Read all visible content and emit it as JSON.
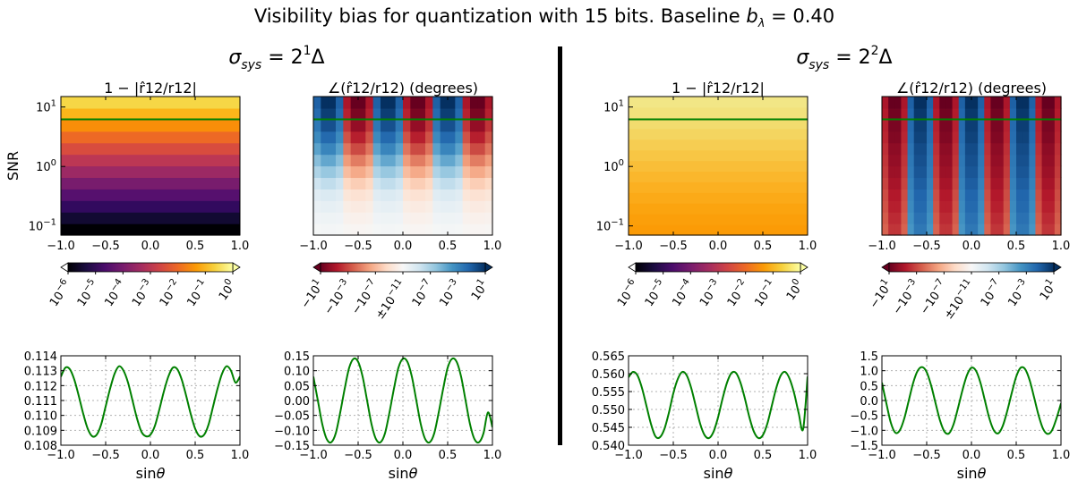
{
  "figure": {
    "suptitle": "Visibility bias for quantization with 15 bits. Baseline b_λ = 0.40",
    "suptitle_main": "Visibility bias for quantization with 15 bits. Baseline ",
    "suptitle_b": "b",
    "suptitle_sub": "λ",
    "suptitle_eq": " = 0.40",
    "groups": [
      {
        "title": "σ_sys = 2^1 Δ",
        "sigma": "σ",
        "sub": "sys",
        "eq": " = 2",
        "exp": "1",
        "delta": "Δ"
      },
      {
        "title": "σ_sys = 2^2 Δ",
        "sigma": "σ",
        "sub": "sys",
        "eq": " = 2",
        "exp": "2",
        "delta": "Δ"
      }
    ],
    "divider_color": "#000000"
  },
  "colors": {
    "line": "#008000",
    "grid": "#b0b0b0",
    "inferno": [
      "#000004",
      "#1b0c41",
      "#4a0c6b",
      "#781c6d",
      "#a52c60",
      "#cf4446",
      "#ed6925",
      "#fb9b06",
      "#f7d13d",
      "#fcffa4"
    ],
    "rdbu": [
      "#67001f",
      "#b2182b",
      "#d6604d",
      "#f4a582",
      "#fddbc7",
      "#f7f7f7",
      "#d1e5f0",
      "#92c5de",
      "#4393c3",
      "#2166ac",
      "#053061"
    ]
  },
  "chart_data": [
    {
      "type": "heatmap",
      "panel": "magnitude-bias-sigma1",
      "title": "1 − |r̂12/r12|",
      "ylabel": "SNR",
      "xlim": [
        -1.0,
        1.0
      ],
      "ylim": [
        0.07,
        15
      ],
      "yscale": "log",
      "x_ticks": [
        "−1.0",
        "−0.5",
        "0.0",
        "0.5",
        "1.0"
      ],
      "y_ticks": [
        "10",
        "10",
        "10"
      ],
      "y_tick_exps": [
        "1",
        "0",
        "−1"
      ],
      "y_tick_values": [
        10,
        1,
        0.1
      ],
      "snr_reference": 6.2,
      "row_colors": [
        "#000004",
        "#120a32",
        "#320a5e",
        "#56106e",
        "#781c6d",
        "#9c2964",
        "#bc3754",
        "#d84c3e",
        "#ed6925",
        "#f98e09",
        "#fbb61a",
        "#f6d746"
      ],
      "colorbar": {
        "cmap": "inferno",
        "labels": [
          "10^-6",
          "10^-5",
          "10^-4",
          "10^-3",
          "10^-2",
          "10^-1",
          "10^0"
        ],
        "bases": [
          "10",
          "10",
          "10",
          "10",
          "10",
          "10",
          "10"
        ],
        "exps": [
          "−6",
          "−5",
          "−4",
          "−3",
          "−2",
          "−1",
          "0"
        ]
      }
    },
    {
      "type": "heatmap",
      "panel": "phase-bias-sigma1",
      "title": "∠(r̂12/r12) (degrees)",
      "xlim": [
        -1.0,
        1.0
      ],
      "ylim": [
        0.07,
        15
      ],
      "yscale": "log",
      "x_ticks": [
        "−1.0",
        "−0.5",
        "0.0",
        "0.5",
        "1.0"
      ],
      "snr_reference": 6.2,
      "stripes_sign": [
        -1,
        1,
        -1,
        1,
        -1,
        1
      ],
      "amplitude_rows": [
        0.02,
        0.05,
        0.09,
        0.15,
        0.25,
        0.38,
        0.52,
        0.66,
        0.78,
        0.88,
        0.95,
        1.0
      ],
      "colorbar": {
        "cmap": "RdBu",
        "labels": [
          "−10^1",
          "−10^-3",
          "−10^-7",
          "±10^-11",
          "10^-7",
          "10^-3",
          "10^1"
        ],
        "bases": [
          "−10",
          "−10",
          "−10",
          "±10",
          "10",
          "10",
          "10"
        ],
        "exps": [
          "1",
          "−3",
          "−7",
          "−11",
          "−7",
          "−3",
          "1"
        ]
      }
    },
    {
      "type": "heatmap",
      "panel": "magnitude-bias-sigma2",
      "title": "1 − |r̂12/r12|",
      "xlim": [
        -1.0,
        1.0
      ],
      "ylim": [
        0.07,
        15
      ],
      "yscale": "log",
      "x_ticks": [
        "−1.0",
        "−0.5",
        "0.0",
        "0.5",
        "1.0"
      ],
      "y_ticks": [
        "10",
        "10",
        "10"
      ],
      "y_tick_exps": [
        "1",
        "0",
        "−1"
      ],
      "y_tick_values": [
        10,
        1,
        0.1
      ],
      "snr_reference": 6.2,
      "row_colors": [
        "#fb9b06",
        "#fb9f0a",
        "#fba40f",
        "#fbaa18",
        "#fbb021",
        "#fab72c",
        "#f9be38",
        "#f8c644",
        "#f6cd52",
        "#f4d560",
        "#f2dc6e",
        "#f2e27c",
        "#f2e686"
      ],
      "colorbar": {
        "cmap": "inferno",
        "labels": [
          "10^-6",
          "10^-5",
          "10^-4",
          "10^-3",
          "10^-2",
          "10^-1",
          "10^0"
        ],
        "bases": [
          "10",
          "10",
          "10",
          "10",
          "10",
          "10",
          "10"
        ],
        "exps": [
          "−6",
          "−5",
          "−4",
          "−3",
          "−2",
          "−1",
          "0"
        ]
      }
    },
    {
      "type": "heatmap",
      "panel": "phase-bias-sigma2",
      "title": "∠(r̂12/r12) (degrees)",
      "xlim": [
        -1.0,
        1.0
      ],
      "ylim": [
        0.07,
        15
      ],
      "yscale": "log",
      "x_ticks": [
        "−1.0",
        "−0.5",
        "0.0",
        "0.5",
        "1.0"
      ],
      "snr_reference": 6.2,
      "stripes_sign": [
        1,
        -1,
        1,
        -1,
        1,
        -1,
        1
      ],
      "amplitude_rows": [
        0.72,
        0.75,
        0.78,
        0.8,
        0.83,
        0.86,
        0.88,
        0.9,
        0.93,
        0.95,
        0.97,
        1.0
      ],
      "colorbar": {
        "cmap": "RdBu",
        "labels": [
          "−10^1",
          "−10^-3",
          "−10^-7",
          "±10^-11",
          "10^-7",
          "10^-3",
          "10^1"
        ],
        "bases": [
          "−10",
          "−10",
          "−10",
          "±10",
          "10",
          "10",
          "10"
        ],
        "exps": [
          "1",
          "−3",
          "−7",
          "−11",
          "−7",
          "−3",
          "1"
        ]
      }
    },
    {
      "type": "line",
      "panel": "magnitude-curve-sigma1",
      "xlabel": "sinθ",
      "xlim": [
        -1.0,
        1.0
      ],
      "ylim": [
        0.108,
        0.114
      ],
      "x_ticks": [
        "−1.0",
        "−0.5",
        "0.0",
        "0.5",
        "1.0"
      ],
      "y_ticks": [
        "0.108",
        "0.109",
        "0.110",
        "0.111",
        "0.112",
        "0.113",
        "0.114"
      ],
      "x": [
        -1.0,
        -0.95,
        -0.9,
        -0.85,
        -0.8,
        -0.75,
        -0.7,
        -0.65,
        -0.6,
        -0.55,
        -0.5,
        -0.45,
        -0.4,
        -0.35,
        -0.3,
        -0.25,
        -0.2,
        -0.15,
        -0.1,
        -0.05,
        0.0,
        0.05,
        0.1,
        0.15,
        0.2,
        0.25,
        0.3,
        0.35,
        0.4,
        0.45,
        0.5,
        0.55,
        0.6,
        0.65,
        0.7,
        0.75,
        0.8,
        0.85,
        0.9,
        0.95,
        1.0
      ],
      "y": [
        0.1126,
        0.1132,
        0.1131,
        0.1124,
        0.1113,
        0.1101,
        0.1091,
        0.1086,
        0.1087,
        0.1094,
        0.1106,
        0.1118,
        0.1128,
        0.1133,
        0.113,
        0.1122,
        0.111,
        0.1098,
        0.1089,
        0.1086,
        0.1087,
        0.1093,
        0.1104,
        0.1116,
        0.1126,
        0.1132,
        0.1131,
        0.1124,
        0.1113,
        0.1101,
        0.1091,
        0.1086,
        0.1087,
        0.1094,
        0.1106,
        0.1118,
        0.1128,
        0.1133,
        0.113,
        0.1122,
        0.1126
      ]
    },
    {
      "type": "line",
      "panel": "phase-curve-sigma1",
      "xlabel": "sinθ",
      "xlim": [
        -1.0,
        1.0
      ],
      "ylim": [
        -0.15,
        0.15
      ],
      "x_ticks": [
        "−1.0",
        "−0.5",
        "0.0",
        "0.5",
        "1.0"
      ],
      "y_ticks": [
        "−0.15",
        "−0.10",
        "−0.05",
        "0.00",
        "0.05",
        "0.10",
        "0.15"
      ],
      "x": [
        -1.0,
        -0.95,
        -0.9,
        -0.85,
        -0.8,
        -0.75,
        -0.7,
        -0.65,
        -0.6,
        -0.55,
        -0.5,
        -0.45,
        -0.4,
        -0.35,
        -0.3,
        -0.25,
        -0.2,
        -0.15,
        -0.1,
        -0.05,
        0.0,
        0.05,
        0.1,
        0.15,
        0.2,
        0.25,
        0.3,
        0.35,
        0.4,
        0.45,
        0.5,
        0.55,
        0.6,
        0.65,
        0.7,
        0.75,
        0.8,
        0.85,
        0.9,
        0.95,
        1.0
      ],
      "y": [
        0.08,
        0.0,
        -0.08,
        -0.13,
        -0.14,
        -0.11,
        -0.04,
        0.04,
        0.11,
        0.14,
        0.13,
        0.08,
        0.0,
        -0.08,
        -0.13,
        -0.14,
        -0.11,
        -0.04,
        0.04,
        0.11,
        0.14,
        0.13,
        0.08,
        0.0,
        -0.08,
        -0.13,
        -0.14,
        -0.11,
        -0.04,
        0.04,
        0.11,
        0.14,
        0.13,
        0.08,
        0.0,
        -0.08,
        -0.13,
        -0.14,
        -0.11,
        -0.04,
        -0.09
      ]
    },
    {
      "type": "line",
      "panel": "magnitude-curve-sigma2",
      "xlabel": "sinθ",
      "xlim": [
        -1.0,
        1.0
      ],
      "ylim": [
        0.54,
        0.565
      ],
      "x_ticks": [
        "−1.0",
        "−0.5",
        "0.0",
        "0.5",
        "1.0"
      ],
      "y_ticks": [
        "0.540",
        "0.545",
        "0.550",
        "0.555",
        "0.560",
        "0.565"
      ],
      "x": [
        -1.0,
        -0.95,
        -0.9,
        -0.85,
        -0.8,
        -0.75,
        -0.7,
        -0.65,
        -0.6,
        -0.55,
        -0.5,
        -0.45,
        -0.4,
        -0.35,
        -0.3,
        -0.25,
        -0.2,
        -0.15,
        -0.1,
        -0.05,
        0.0,
        0.05,
        0.1,
        0.15,
        0.2,
        0.25,
        0.3,
        0.35,
        0.4,
        0.45,
        0.5,
        0.55,
        0.6,
        0.65,
        0.7,
        0.75,
        0.8,
        0.85,
        0.9,
        0.95,
        1.0
      ],
      "y": [
        0.559,
        0.5605,
        0.5595,
        0.556,
        0.551,
        0.546,
        0.5425,
        0.5422,
        0.5445,
        0.549,
        0.5545,
        0.5585,
        0.5605,
        0.5595,
        0.556,
        0.551,
        0.546,
        0.5428,
        0.542,
        0.5438,
        0.5478,
        0.553,
        0.5575,
        0.5602,
        0.5602,
        0.5575,
        0.553,
        0.5478,
        0.5438,
        0.542,
        0.5428,
        0.546,
        0.551,
        0.556,
        0.5595,
        0.5605,
        0.5585,
        0.5545,
        0.549,
        0.5445,
        0.5592
      ]
    },
    {
      "type": "line",
      "panel": "phase-curve-sigma2",
      "xlabel": "sinθ",
      "xlim": [
        -1.0,
        1.0
      ],
      "ylim": [
        -1.5,
        1.5
      ],
      "x_ticks": [
        "−1.0",
        "−0.5",
        "0.0",
        "0.5",
        "1.0"
      ],
      "y_ticks": [
        "−1.5",
        "−1.0",
        "−0.5",
        "0.0",
        "0.5",
        "1.0",
        "1.5"
      ],
      "x": [
        -1.0,
        -0.95,
        -0.9,
        -0.85,
        -0.8,
        -0.75,
        -0.7,
        -0.65,
        -0.6,
        -0.55,
        -0.5,
        -0.45,
        -0.4,
        -0.35,
        -0.3,
        -0.25,
        -0.2,
        -0.15,
        -0.1,
        -0.05,
        0.0,
        0.05,
        0.1,
        0.15,
        0.2,
        0.25,
        0.3,
        0.35,
        0.4,
        0.45,
        0.5,
        0.55,
        0.6,
        0.65,
        0.7,
        0.75,
        0.8,
        0.85,
        0.9,
        0.95,
        1.0
      ],
      "y": [
        0.6,
        -0.1,
        -0.75,
        -1.08,
        -1.0,
        -0.6,
        0.0,
        0.6,
        1.0,
        1.12,
        0.95,
        0.5,
        -0.1,
        -0.68,
        -1.05,
        -1.1,
        -0.8,
        -0.25,
        0.35,
        0.85,
        1.1,
        1.0,
        0.6,
        0.0,
        -0.6,
        -1.0,
        -1.1,
        -0.85,
        -0.35,
        0.25,
        0.8,
        1.1,
        1.05,
        0.68,
        0.1,
        -0.5,
        -0.95,
        -1.12,
        -1.0,
        -0.6,
        -0.1
      ]
    }
  ]
}
